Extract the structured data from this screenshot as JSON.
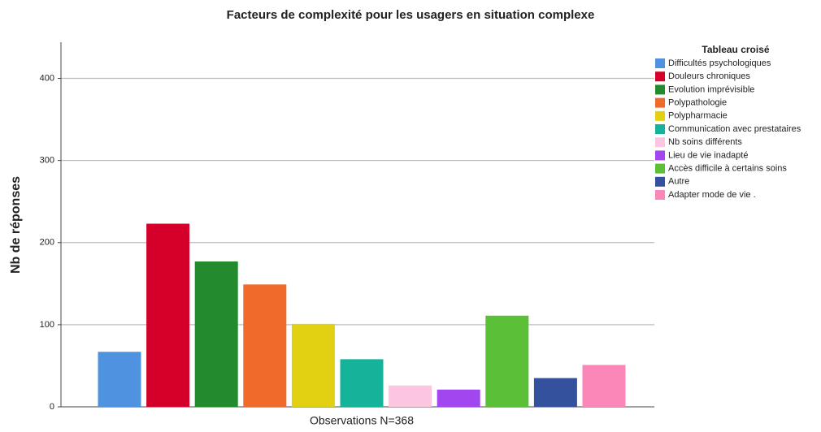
{
  "chart_data": {
    "type": "bar",
    "title": "Facteurs de complexité pour les usagers en situation complexe",
    "y_label": "Nb de réponses",
    "categories": [
      "Observations N=368"
    ],
    "legend_title": "Tableau croisé",
    "legend": "right",
    "grid": true,
    "ylim": [
      0,
      444
    ],
    "yticks": [
      0,
      100,
      200,
      300,
      400
    ],
    "series": [
      {
        "name": "Difficultés psychologiques",
        "color": "#4f93e0",
        "values": [
          67
        ]
      },
      {
        "name": "Douleurs chroniques",
        "color": "#d4002a",
        "values": [
          223
        ]
      },
      {
        "name": "Evolution imprévisible",
        "color": "#238a2d",
        "values": [
          177
        ]
      },
      {
        "name": "Polypathologie",
        "color": "#f06a2b",
        "values": [
          149
        ]
      },
      {
        "name": "Polypharmacie",
        "color": "#e2d113",
        "values": [
          101
        ]
      },
      {
        "name": "Communication avec prestataires",
        "color": "#16b39b",
        "values": [
          58
        ]
      },
      {
        "name": "Nb soins différents",
        "color": "#fcc6e0",
        "values": [
          26
        ]
      },
      {
        "name": "Lieu de vie inadapté",
        "color": "#a246f0",
        "values": [
          21
        ]
      },
      {
        "name": "Accès difficile à certains soins",
        "color": "#5cbf38",
        "values": [
          111
        ]
      },
      {
        "name": "Autre",
        "color": "#34519e",
        "values": [
          35
        ]
      },
      {
        "name": "Adapter mode de vie .",
        "color": "#fb86b8",
        "values": [
          51
        ]
      }
    ]
  }
}
